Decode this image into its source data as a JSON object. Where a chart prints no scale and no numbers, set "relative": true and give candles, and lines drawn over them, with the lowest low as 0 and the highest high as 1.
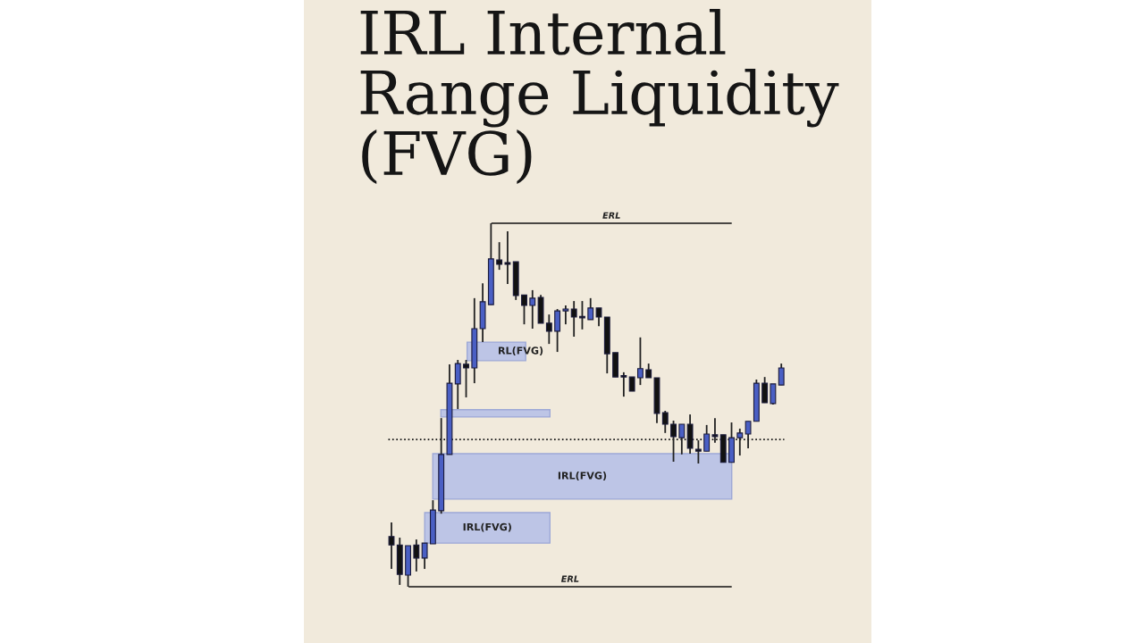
{
  "chart_data": {
    "type": "candlestick",
    "title": "IRL Internal\nRange Liquidity\n(FVG)",
    "relative": true,
    "categories": [
      null,
      null,
      null,
      null,
      null,
      null,
      null,
      null,
      null,
      null,
      null,
      null,
      null,
      null,
      null,
      null,
      null,
      null,
      null,
      null,
      null,
      null,
      null,
      null,
      null,
      null,
      null,
      null,
      null,
      null,
      null,
      null,
      null,
      null,
      null,
      null,
      null,
      null,
      null,
      null,
      null,
      null,
      null,
      null,
      null,
      null,
      null,
      null
    ],
    "ohlc": [
      [
        0.138,
        0.177,
        0.049,
        0.115
      ],
      [
        0.115,
        0.135,
        0.005,
        0.034
      ],
      [
        0.032,
        0.113,
        0,
        0.113
      ],
      [
        0.115,
        0.13,
        0.042,
        0.079
      ],
      [
        0.079,
        0.12,
        0.049,
        0.12
      ],
      [
        0.118,
        0.238,
        0.118,
        0.211
      ],
      [
        0.209,
        0.464,
        0.201,
        0.364
      ],
      [
        0.364,
        0.612,
        0.364,
        0.56
      ],
      [
        0.558,
        0.624,
        0.489,
        0.614
      ],
      [
        0.612,
        0.624,
        0.521,
        0.602
      ],
      [
        0.602,
        0.794,
        0.56,
        0.71
      ],
      [
        0.71,
        0.835,
        0.673,
        0.784
      ],
      [
        0.776,
        1,
        0.776,
        0.902
      ],
      [
        0.899,
        0.948,
        0.872,
        0.887
      ],
      [
        0.892,
        0.978,
        0.833,
        0.887
      ],
      [
        0.894,
        0.894,
        0.789,
        0.801
      ],
      [
        0.803,
        0.803,
        0.722,
        0.774
      ],
      [
        0.774,
        0.816,
        0.71,
        0.794
      ],
      [
        0.796,
        0.803,
        0.725,
        0.725
      ],
      [
        0.725,
        0.749,
        0.668,
        0.703
      ],
      [
        0.703,
        0.764,
        0.646,
        0.759
      ],
      [
        0.759,
        0.774,
        0.722,
        0.764
      ],
      [
        0.764,
        0.786,
        0.688,
        0.742
      ],
      [
        0.742,
        0.786,
        0.708,
        0.74
      ],
      [
        0.735,
        0.794,
        0.735,
        0.767
      ],
      [
        0.767,
        0.767,
        0.717,
        0.742
      ],
      [
        0.742,
        0.742,
        0.587,
        0.641
      ],
      [
        0.644,
        0.644,
        0.577,
        0.577
      ],
      [
        0.58,
        0.59,
        0.523,
        0.577
      ],
      [
        0.577,
        0.577,
        0.538,
        0.538
      ],
      [
        0.575,
        0.686,
        0.555,
        0.6
      ],
      [
        0.597,
        0.614,
        0.575,
        0.575
      ],
      [
        0.575,
        0.575,
        0.45,
        0.477
      ],
      [
        0.479,
        0.484,
        0.423,
        0.447
      ],
      [
        0.447,
        0.457,
        0.344,
        0.413
      ],
      [
        0.41,
        0.447,
        0.364,
        0.447
      ],
      [
        0.447,
        0.474,
        0.366,
        0.381
      ],
      [
        0.378,
        0.403,
        0.339,
        0.373
      ],
      [
        0.373,
        0.445,
        0.373,
        0.42
      ],
      [
        0.418,
        0.464,
        0.396,
        0.413
      ],
      [
        0.418,
        0.418,
        0.342,
        0.342
      ],
      [
        0.342,
        0.452,
        0.342,
        0.41
      ],
      [
        0.41,
        0.435,
        0.361,
        0.423
      ],
      [
        0.42,
        0.455,
        0.381,
        0.455
      ],
      [
        0.455,
        0.57,
        0.455,
        0.56
      ],
      [
        0.56,
        0.577,
        0.506,
        0.506
      ],
      [
        0.504,
        0.558,
        0.501,
        0.558
      ],
      [
        0.555,
        0.614,
        0.555,
        0.602
      ]
    ],
    "colors": [
      "#111111",
      "#111111",
      "#4a5fc4",
      "#111111",
      "#4a5fc4",
      "#4a5fc4",
      "#4a5fc4",
      "#4a5fc4",
      "#4a5fc4",
      "#111111",
      "#4a5fc4",
      "#4a5fc4",
      "#4a5fc4",
      "#111111",
      "#111111",
      "#111111",
      "#111111",
      "#4a5fc4",
      "#111111",
      "#111111",
      "#4a5fc4",
      "#4a5fc4",
      "#111111",
      "#111111",
      "#4a5fc4",
      "#111111",
      "#111111",
      "#111111",
      "#111111",
      "#111111",
      "#4a5fc4",
      "#111111",
      "#111111",
      "#111111",
      "#111111",
      "#4a5fc4",
      "#111111",
      "#111111",
      "#4a5fc4",
      "#111111",
      "#111111",
      "#4a5fc4",
      "#4a5fc4",
      "#4a5fc4",
      "#4a5fc4",
      "#111111",
      "#4a5fc4",
      "#4a5fc4"
    ],
    "bands": [
      {
        "axis": "y",
        "from": 0.12,
        "to": 0.204,
        "label": "IRL(FVG)",
        "color": "#b4bfe8"
      },
      {
        "axis": "y",
        "from": 0.241,
        "to": 0.366,
        "label": "IRL(FVG)",
        "color": "#b4bfe8"
      },
      {
        "axis": "y",
        "from": 0.467,
        "to": 0.487,
        "label": null,
        "color": "#b4bfe8"
      },
      {
        "axis": "y",
        "from": 0.622,
        "to": 0.673,
        "label": "RL(FVG)",
        "color": "#b4bfe8"
      }
    ],
    "ref_lines": [
      {
        "axis": "y",
        "value": 1,
        "label": "ERL",
        "color": "#111111",
        "line_style": "solid"
      },
      {
        "axis": "y",
        "value": 0,
        "label": "ERL",
        "color": "#111111",
        "line_style": "solid"
      },
      {
        "axis": "y",
        "value": 0.405,
        "label": null,
        "color": "#111111",
        "line_style": "dotted"
      }
    ]
  }
}
